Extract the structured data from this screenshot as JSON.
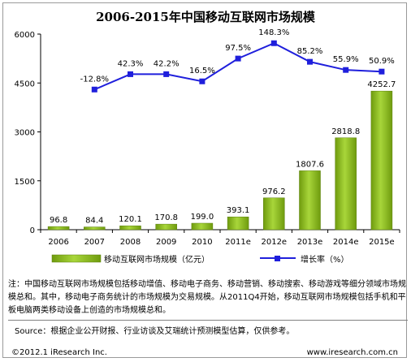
{
  "chart_data": {
    "type": "bar",
    "title": "2006-2015年中国移动互联网市场规模",
    "categories": [
      "2006",
      "2007",
      "2008",
      "2009",
      "2010",
      "2011e",
      "2012e",
      "2013e",
      "2014e",
      "2015e"
    ],
    "ylim": [
      0,
      6000
    ],
    "yticks": [
      0,
      1500,
      3000,
      4500,
      6000
    ],
    "series": [
      {
        "name": "移动互联网市场规模（亿元）",
        "kind": "bar",
        "color": "#8dc11b",
        "values": [
          96.8,
          84.4,
          120.1,
          170.8,
          199.0,
          393.1,
          976.2,
          1807.6,
          2818.8,
          4252.7
        ],
        "labels": [
          "96.8",
          "84.4",
          "120.1",
          "170.8",
          "199.0",
          "393.1",
          "976.2",
          "1807.6",
          "2818.8",
          "4252.7"
        ]
      },
      {
        "name": "增长率（%）",
        "kind": "line",
        "color": "#1f1fdc",
        "values": [
          null,
          -12.8,
          42.3,
          42.2,
          16.5,
          97.5,
          148.3,
          85.2,
          55.9,
          50.9
        ],
        "labels": [
          "",
          "-12.8%",
          "42.3%",
          "42.2%",
          "16.5%",
          "97.5%",
          "148.3%",
          "85.2%",
          "55.9%",
          "50.9%"
        ]
      }
    ],
    "line_display_positions": [
      null,
      4300,
      4770,
      4770,
      4550,
      5250,
      5720,
      5150,
      4900,
      4850
    ],
    "legend_position": "bottom"
  },
  "notes": {
    "note": "注：中国移动互联网市场规模包括移动增值、移动电子商务、移动营销、移动搜索、移动游戏等细分领域市场规模总和。其中，移动电子商务统计的市场规模为交易规模。从2011Q4开始，移动互联网市场规模包括手机和平板电脑两类移动设备上创造的市场规模总和。",
    "source": "Source：根据企业公开财报、行业访谈及艾瑞统计预测模型估算，仅供参考。"
  },
  "footer": {
    "copyright": "©2012.1 iResearch Inc.",
    "website": "www.iresearch.com.cn"
  }
}
